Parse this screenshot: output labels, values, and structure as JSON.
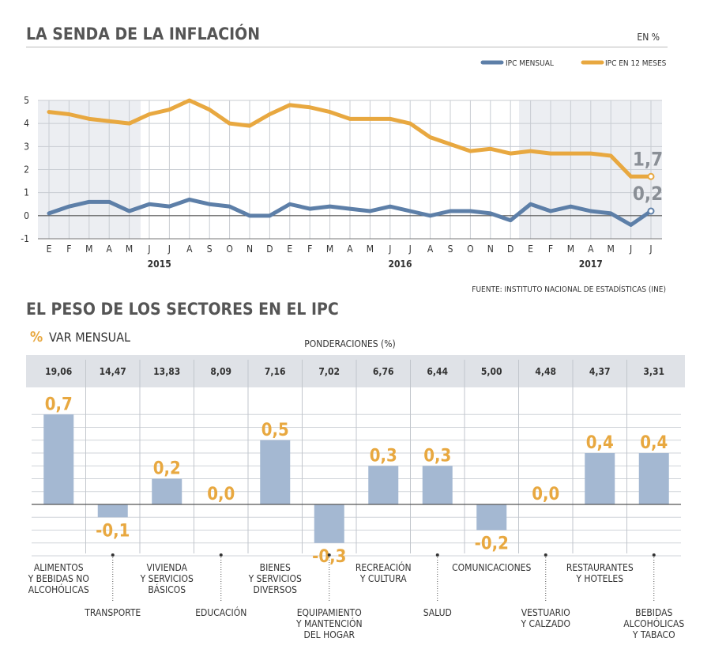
{
  "chart_data": [
    {
      "type": "line",
      "title": "LA SENDA DE LA INFLACIÓN",
      "unit": "EN %",
      "source": "FUENTE: INSTITUTO NACIONAL DE ESTADÍSTICAS (INE)",
      "x_tick_labels": [
        "E",
        "F",
        "M",
        "A",
        "M",
        "J",
        "J",
        "A",
        "S",
        "O",
        "N",
        "D",
        "E",
        "F",
        "M",
        "A",
        "M",
        "J",
        "J",
        "A",
        "S",
        "O",
        "N",
        "D",
        "E",
        "F",
        "M",
        "A",
        "M",
        "J",
        "J"
      ],
      "year_labels": [
        {
          "label": "2015",
          "index": 5.5
        },
        {
          "label": "2016",
          "index": 17.5
        },
        {
          "label": "2017",
          "index": 27
        }
      ],
      "ylim": [
        -1,
        5
      ],
      "y_ticks": [
        -1,
        0,
        1,
        2,
        3,
        4,
        5
      ],
      "grid": true,
      "legend_position": "top-right",
      "series": [
        {
          "name": "IPC MENSUAL",
          "color": "#5d7fa8",
          "values": [
            0.1,
            0.4,
            0.6,
            0.6,
            0.2,
            0.5,
            0.4,
            0.7,
            0.5,
            0.4,
            0.0,
            0.0,
            0.5,
            0.3,
            0.4,
            0.3,
            0.2,
            0.4,
            0.2,
            0.0,
            0.2,
            0.2,
            0.1,
            -0.2,
            0.5,
            0.2,
            0.4,
            0.2,
            0.1,
            -0.4,
            0.2
          ],
          "end_label": "0,2"
        },
        {
          "name": "IPC EN 12 MESES",
          "color": "#e8a840",
          "values": [
            4.5,
            4.4,
            4.2,
            4.1,
            4.0,
            4.4,
            4.6,
            5.0,
            4.6,
            4.0,
            3.9,
            4.4,
            4.8,
            4.7,
            4.5,
            4.2,
            4.2,
            4.2,
            4.0,
            3.4,
            3.1,
            2.8,
            2.9,
            2.7,
            2.8,
            2.7,
            2.7,
            2.7,
            2.6,
            1.7,
            1.7
          ],
          "end_label": "1,7"
        }
      ]
    },
    {
      "type": "bar",
      "title": "EL PESO DE LOS SECTORES EN EL IPC",
      "value_label_prefix": "%",
      "value_label": "VAR MENSUAL",
      "weights_title": "PONDERACIONES (%)",
      "bar_color": "#a4b8d2",
      "label_color": "#e8a840",
      "ylim": [
        -0.5,
        0.9
      ],
      "categories": [
        {
          "name": "ALIMENTOS\nY BEBIDAS NO\nALCOHÓLICAS",
          "weight": "19,06",
          "value": 0.7,
          "value_text": "0,7"
        },
        {
          "name": "TRANSPORTE",
          "weight": "14,47",
          "value": -0.1,
          "value_text": "-0,1"
        },
        {
          "name": "VIVIENDA\nY SERVICIOS\nBÁSICOS",
          "weight": "13,83",
          "value": 0.2,
          "value_text": "0,2"
        },
        {
          "name": "EDUCACIÓN",
          "weight": "8,09",
          "value": 0.0,
          "value_text": "0,0"
        },
        {
          "name": "BIENES\nY SERVICIOS\nDIVERSOS",
          "weight": "7,16",
          "value": 0.5,
          "value_text": "0,5"
        },
        {
          "name": "EQUIPAMIENTO\nY MANTENCIÓN\nDEL HOGAR",
          "weight": "7,02",
          "value": -0.3,
          "value_text": "-0,3"
        },
        {
          "name": "RECREACIÓN\nY CULTURA",
          "weight": "6,76",
          "value": 0.3,
          "value_text": "0,3"
        },
        {
          "name": "SALUD",
          "weight": "6,44",
          "value": 0.3,
          "value_text": "0,3"
        },
        {
          "name": "COMUNICACIONES",
          "weight": "5,00",
          "value": -0.2,
          "value_text": "-0,2"
        },
        {
          "name": "VESTUARIO\nY CALZADO",
          "weight": "4,48",
          "value": 0.0,
          "value_text": "0,0"
        },
        {
          "name": "RESTAURANTES\nY HOTELES",
          "weight": "4,37",
          "value": 0.4,
          "value_text": "0,4"
        },
        {
          "name": "BEBIDAS\nALCOHÓLICAS\nY TABACO",
          "weight": "3,31",
          "value": 0.4,
          "value_text": "0,4"
        }
      ]
    }
  ]
}
